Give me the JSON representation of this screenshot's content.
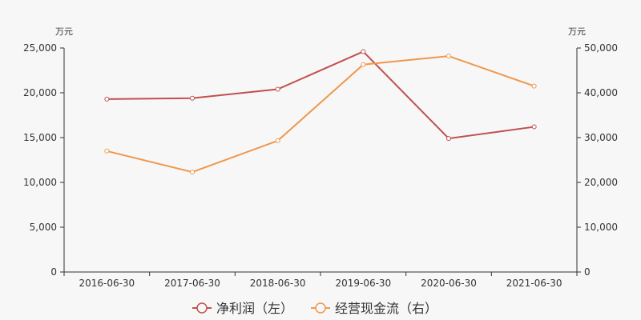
{
  "chart_data": {
    "type": "line",
    "categories": [
      "2016-06-30",
      "2017-06-30",
      "2018-06-30",
      "2019-06-30",
      "2020-06-30",
      "2021-06-30"
    ],
    "series": [
      {
        "name": "净利润（左）",
        "axis": "left",
        "color": "#c0504d",
        "values": [
          19300,
          19400,
          20400,
          24600,
          14900,
          16200
        ]
      },
      {
        "name": "经营现金流（右）",
        "axis": "right",
        "color": "#f0974a",
        "values": [
          27000,
          22300,
          29300,
          46300,
          48200,
          41500
        ]
      }
    ],
    "y_left": {
      "unit": "万元",
      "ylim": [
        0,
        25000
      ],
      "ticks": [
        0,
        5000,
        10000,
        15000,
        20000,
        25000
      ],
      "tick_labels": [
        "0",
        "5,000",
        "10,000",
        "15,000",
        "20,000",
        "25,000"
      ]
    },
    "y_right": {
      "unit": "万元",
      "ylim": [
        0,
        50000
      ],
      "ticks": [
        0,
        10000,
        20000,
        30000,
        40000,
        50000
      ],
      "tick_labels": [
        "0",
        "10,000",
        "20,000",
        "30,000",
        "40,000",
        "50,000"
      ]
    },
    "grid": false,
    "legend_position": "bottom-center"
  }
}
